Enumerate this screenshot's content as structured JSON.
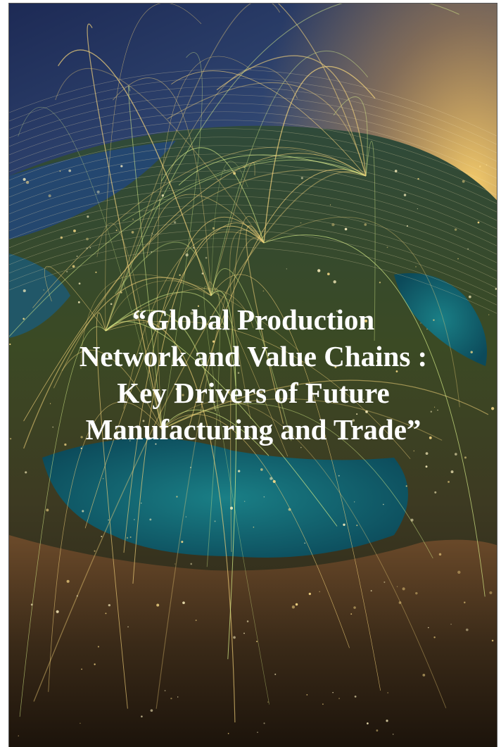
{
  "cover": {
    "title_lines": [
      "“Global Production",
      "Network and Value Chains :",
      "Key Drivers of Future",
      "Manufacturing and Trade”"
    ]
  }
}
